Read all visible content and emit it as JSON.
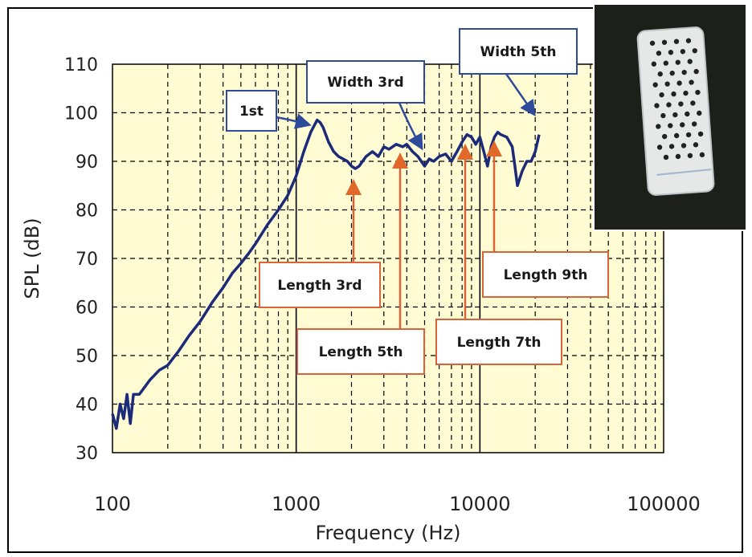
{
  "chart_data": {
    "type": "line",
    "title": "",
    "xlabel": "Frequency (Hz)",
    "ylabel": "SPL (dB)",
    "x_scale": "log",
    "xlim": [
      100,
      100000
    ],
    "ylim": [
      30,
      110
    ],
    "x_ticks": [
      100,
      1000,
      10000,
      100000
    ],
    "x_tick_labels": [
      "100",
      "1000",
      "10000",
      "100000"
    ],
    "y_ticks": [
      30,
      40,
      50,
      60,
      70,
      80,
      90,
      100,
      110
    ],
    "y_tick_labels": [
      "30",
      "40",
      "50",
      "60",
      "70",
      "80",
      "90",
      "100",
      "110"
    ],
    "grid": true,
    "plot_background": "#fffbd2",
    "series": [
      {
        "color": "#1c2a7a",
        "x": [
          100,
          105,
          110,
          115,
          120,
          125,
          130,
          140,
          160,
          180,
          200,
          230,
          260,
          300,
          350,
          400,
          450,
          500,
          550,
          600,
          700,
          800,
          900,
          1000,
          1100,
          1200,
          1300,
          1350,
          1400,
          1500,
          1600,
          1700,
          1800,
          1900,
          2000,
          2100,
          2200,
          2400,
          2600,
          2800,
          3000,
          3200,
          3500,
          3800,
          4000,
          4300,
          4600,
          5000,
          5300,
          5600,
          6000,
          6500,
          7000,
          7500,
          8000,
          8500,
          9000,
          9500,
          10000,
          10500,
          11000,
          11500,
          12000,
          12500,
          13000,
          14000,
          15000,
          15500,
          16000,
          17000,
          18000,
          19000,
          20000,
          21000
        ],
        "y": [
          38,
          35,
          40,
          37,
          42,
          36,
          42,
          42,
          45,
          47,
          48,
          51,
          54,
          57,
          61,
          64,
          67,
          69,
          71,
          73,
          77,
          80,
          83,
          87,
          92,
          96,
          98.5,
          98,
          97,
          94,
          92,
          91,
          90.5,
          90,
          89,
          88.5,
          89,
          91,
          92,
          91,
          93,
          92.5,
          93.5,
          93,
          93.5,
          92,
          91,
          89,
          90.5,
          90,
          91,
          91.5,
          90,
          92,
          94,
          95.5,
          95,
          93.5,
          95,
          92,
          89,
          93,
          95,
          96,
          95.5,
          95,
          93,
          89,
          85,
          88,
          90,
          90,
          92,
          95.5
        ]
      }
    ],
    "annotations": [
      {
        "text": "1st",
        "frequency": 1300,
        "spl": 98
      },
      {
        "text": "Width 3rd",
        "frequency": 5000,
        "spl": 93
      },
      {
        "text": "Width 5th",
        "frequency": 20000,
        "spl": 97
      },
      {
        "text": "Length 3rd",
        "frequency": 2100,
        "spl": 89
      },
      {
        "text": "Length 5th",
        "frequency": 3800,
        "spl": 92
      },
      {
        "text": "Length 7th",
        "frequency": 8500,
        "spl": 93
      },
      {
        "text": "Length 9th",
        "frequency": 12800,
        "spl": 93
      }
    ]
  },
  "photo": {
    "content": "perforated white plate on dark leather background",
    "background_color": "#1d1f1b",
    "plate_color": "#e6e8e8",
    "hole_color": "#222222"
  }
}
